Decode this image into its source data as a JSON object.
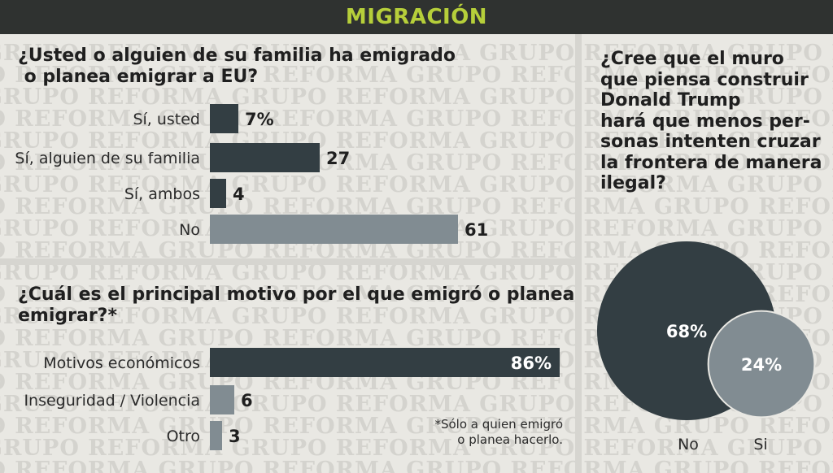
{
  "header": {
    "title": "MIGRACIÓN"
  },
  "watermark": {
    "text": "GRUPO REFORMA"
  },
  "colors": {
    "dark": "#333e43",
    "gray": "#818c92",
    "accent": "#b6cf3a",
    "header_bg": "#2f3230"
  },
  "chart_data": [
    {
      "type": "bar",
      "orientation": "horizontal",
      "title_lines": [
        "¿Usted o alguien de su familia ha emigrado",
        " o planea emigrar a EU?"
      ],
      "categories": [
        "Sí, usted",
        "Sí, alguien de su familia",
        "Sí, ambos",
        "No"
      ],
      "values": [
        7,
        27,
        4,
        61
      ],
      "value_labels": [
        "7%",
        "27",
        "4",
        "61"
      ],
      "xlim": [
        0,
        100
      ]
    },
    {
      "type": "bar",
      "orientation": "horizontal",
      "title_lines": [
        "¿Cuál es el principal motivo por el que emigró o planea",
        "emigrar?*"
      ],
      "categories": [
        "Motivos económicos",
        "Inseguridad / Violencia",
        "Otro"
      ],
      "values": [
        86,
        6,
        3
      ],
      "value_labels": [
        "86%",
        "6",
        "3"
      ],
      "xlim": [
        0,
        100
      ],
      "footnote_lines": [
        "*Sólo a quien emigró",
        "o planea hacerlo."
      ]
    },
    {
      "type": "bubble",
      "title_lines": [
        "¿Cree que el muro",
        "que piensa construir",
        "Donald Trump",
        "hará que menos per-",
        "sonas intenten cruzar",
        "la frontera de manera",
        "ilegal?"
      ],
      "categories": [
        "No",
        "Si"
      ],
      "values": [
        68,
        24
      ],
      "value_labels": [
        "68%",
        "24%"
      ]
    }
  ]
}
